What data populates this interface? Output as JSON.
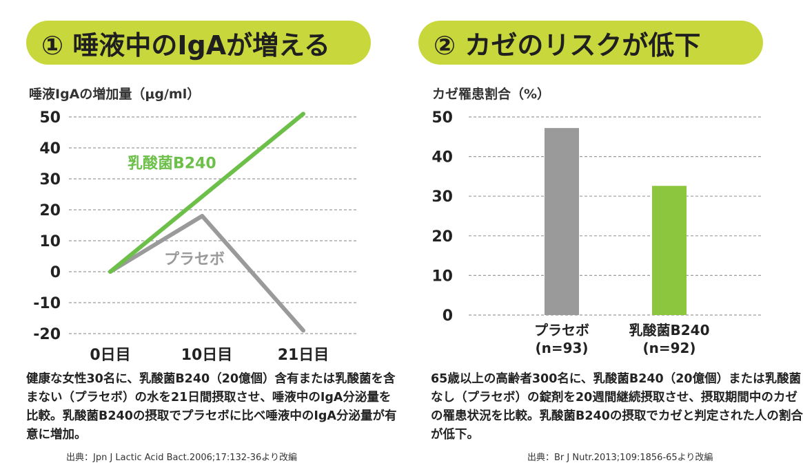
{
  "left": {
    "heading": "① 唾液中のIgAが増える",
    "ylabel": "唾液IgAの増加量（μg/ml）",
    "caption": "健康な女性30名に、乳酸菌B240（20億個）含有または乳酸菌を含まない（プラセボ）の水を21日間摂取させ、唾液中のIgA分泌量を比較。乳酸菌B240の摂取でプラセボに比べ唾液中のIgA分泌量が有意に増加。",
    "source": "出典：Jpn J Lactic Acid Bact.2006;17:132-36より改編"
  },
  "right": {
    "heading": "② カゼのリスクが低下",
    "ylabel": "カゼ罹患割合（%）",
    "caption": "65歳以上の高齢者300名に、乳酸菌B240（20億個）または乳酸菌なし（プラセボ）の錠剤を20週間継続摂取させ、摂取期間中のカゼの罹患状況を比較。乳酸菌B240の摂取でカゼと判定された人の割合が低下。",
    "source": "出典：Br J Nutr.2013;109:1856-65より改編"
  },
  "chart_data": [
    {
      "type": "line",
      "ylabel": "唾液IgAの増加量（μg/ml）",
      "categories": [
        "0日目",
        "10日目",
        "21日目"
      ],
      "ylim": [
        -20,
        50
      ],
      "yticks": [
        50,
        40,
        30,
        20,
        10,
        0,
        -10,
        -20
      ],
      "ytick_labels": [
        "50",
        "40",
        "30",
        "20",
        "10",
        "0",
        "-10",
        "-20"
      ],
      "grid": true,
      "series": [
        {
          "name": "乳酸菌B240",
          "color": "#6cc04a",
          "x": [
            0,
            21
          ],
          "values": [
            0,
            51
          ]
        },
        {
          "name": "プラセボ",
          "color": "#9a9a9a",
          "x": [
            0,
            10,
            21
          ],
          "values": [
            0,
            18,
            -19
          ]
        }
      ]
    },
    {
      "type": "bar",
      "ylabel": "カゼ罹患割合（%）",
      "categories": [
        "プラセボ",
        "乳酸菌B240"
      ],
      "category_sub": [
        "(n=93)",
        "(n=92)"
      ],
      "values": [
        47.2,
        32.6
      ],
      "colors": [
        "#9a9a9a",
        "#8cc63e"
      ],
      "ylim": [
        0,
        50
      ],
      "yticks": [
        50,
        40,
        30,
        20,
        10,
        0
      ],
      "ytick_labels": [
        "50",
        "40",
        "30",
        "20",
        "10",
        "0"
      ],
      "grid": true
    }
  ]
}
